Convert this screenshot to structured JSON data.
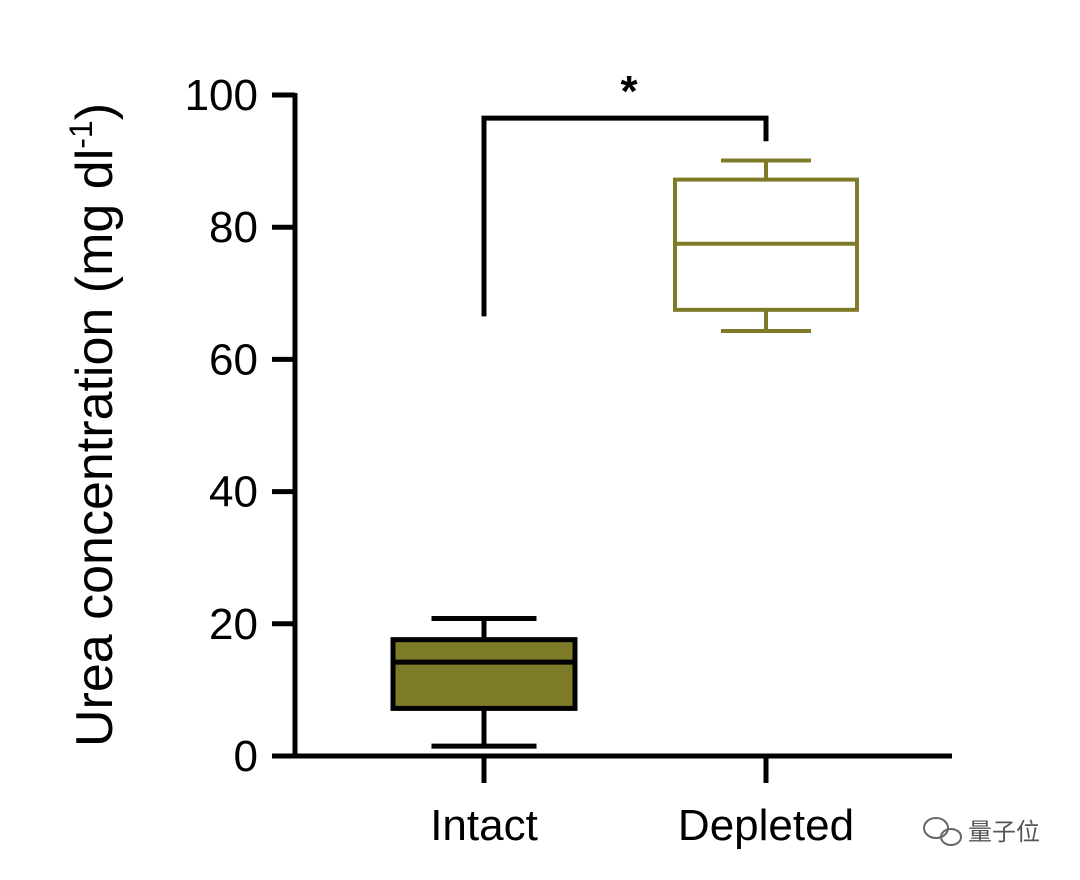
{
  "chart_data": {
    "type": "box",
    "categories": [
      "Intact",
      "Depleted"
    ],
    "boxes": [
      {
        "category": "Intact",
        "min": 1.5,
        "q1": 7.2,
        "median": 14.2,
        "q3": 17.6,
        "max": 20.8,
        "filled": true
      },
      {
        "category": "Depleted",
        "min": 64.3,
        "q1": 67.5,
        "median": 77.5,
        "q3": 87.2,
        "max": 90.1,
        "filled": false
      }
    ],
    "ylabel_main": "Urea concentration (mg dl",
    "ylabel_sup": "-1",
    "ylabel_close": ")",
    "ylim": [
      0,
      100
    ],
    "yticks": [
      "0",
      "20",
      "40",
      "60",
      "80",
      "100"
    ],
    "significance": {
      "label": "*",
      "from": "Intact",
      "to": "Depleted",
      "y": 96.5,
      "left_drop_to": 66.5,
      "right_drop_to": 93
    },
    "grid": false,
    "colors": {
      "box": "#7d7a28",
      "axis": "#000000"
    }
  },
  "watermark": {
    "text": "量子位"
  }
}
